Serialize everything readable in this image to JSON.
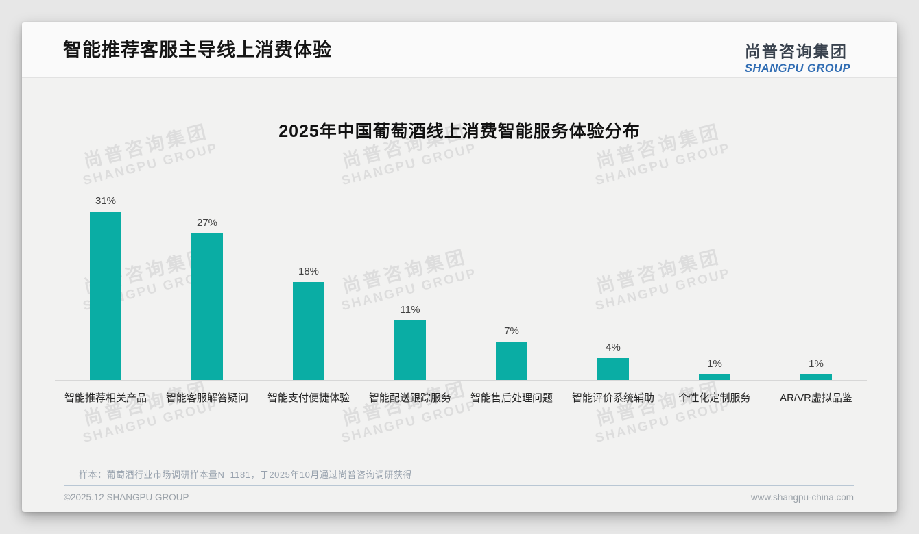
{
  "header": {
    "title": "智能推荐客服主导线上消费体验"
  },
  "logo": {
    "cn": "尚普咨询集团",
    "en": "SHANGPU GROUP"
  },
  "watermark": {
    "cn": "尚普咨询集团",
    "en": "SHANGPU GROUP"
  },
  "note": "样本：葡萄酒行业市场调研样本量N=1181，于2025年10月通过尚普咨询调研获得",
  "footer": {
    "left": "©2025.12 SHANGPU GROUP",
    "right": "www.shangpu-china.com"
  },
  "chart_data": {
    "type": "bar",
    "title": "2025年中国葡萄酒线上消费智能服务体验分布",
    "categories": [
      "智能推荐相关产品",
      "智能客服解答疑问",
      "智能支付便捷体验",
      "智能配送跟踪服务",
      "智能售后处理问题",
      "智能评价系统辅助",
      "个性化定制服务",
      "AR/VR虚拟品鉴"
    ],
    "values": [
      31,
      27,
      18,
      11,
      7,
      4,
      1,
      1
    ],
    "value_labels": [
      "31%",
      "27%",
      "18%",
      "11%",
      "7%",
      "4%",
      "1%",
      "1%"
    ],
    "bar_color": "#0aada4",
    "xlabel": "",
    "ylabel": "",
    "ylim": [
      0,
      35
    ],
    "grid": false,
    "legend": "none"
  }
}
